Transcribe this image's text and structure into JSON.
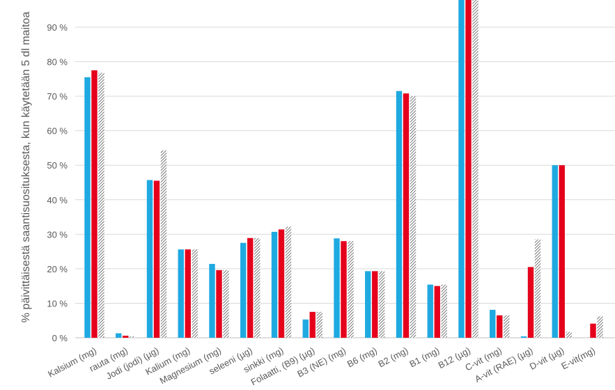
{
  "chart_data": {
    "type": "bar",
    "ylabel": "% päivittäisestä saantisuosituksesta, kun käytetään 5 dl maitoa",
    "ylim": [
      0,
      100
    ],
    "y_ticks": [
      "0 %",
      "10 %",
      "20 %",
      "30 %",
      "40 %",
      "50 %",
      "60 %",
      "70 %",
      "80 %",
      "90 %"
    ],
    "y_tick_values": [
      0,
      10,
      20,
      30,
      40,
      50,
      60,
      70,
      80,
      90
    ],
    "grid": true,
    "categories": [
      "Kalsium (mg)",
      "rauta (mg)",
      "Jodi (jodi) (µg)",
      "Kalium (mg)",
      "Magnesium (mg)",
      "seleeni (µg)",
      "sinkki (mg)",
      "Folaatti, (B9) (µg)",
      "B3 (NE) (mg)",
      "B6 (mg)",
      "B2 (mg)",
      "B1 (mg)",
      "B12 (µg)",
      "C-vit (mg)",
      "A-vit (RAE) (µg)",
      "D-vit (µg)",
      "E-vit(mg)"
    ],
    "series": [
      {
        "values": [
          75.5,
          1.3,
          45.7,
          25.6,
          21.4,
          27.5,
          30.7,
          5.3,
          28.8,
          19.3,
          71.5,
          15.4,
          102,
          8.1,
          0.4,
          50,
          0
        ],
        "color": "#1fa9e1",
        "pattern": "solid"
      },
      {
        "values": [
          77.5,
          0.6,
          45.5,
          25.6,
          19.6,
          28.9,
          31.4,
          7.5,
          28.0,
          19.3,
          70.8,
          15.0,
          102,
          6.5,
          20.5,
          50,
          4.1
        ],
        "color": "#e5001c",
        "pattern": "solid"
      },
      {
        "values": [
          76.8,
          0.4,
          54.3,
          25.6,
          19.6,
          28.9,
          32.2,
          7.5,
          28.0,
          19.3,
          70.0,
          15.4,
          102,
          6.5,
          28.5,
          1.7,
          6.2
        ],
        "color": "#404040",
        "pattern": "hatched"
      }
    ]
  }
}
